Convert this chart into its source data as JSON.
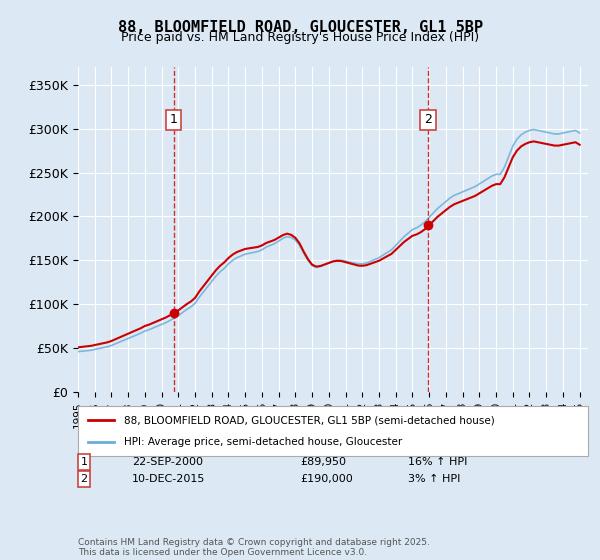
{
  "title": "88, BLOOMFIELD ROAD, GLOUCESTER, GL1 5BP",
  "subtitle": "Price paid vs. HM Land Registry's House Price Index (HPI)",
  "background_color": "#dce9f5",
  "plot_bg_color": "#dce9f5",
  "ylabel_ticks": [
    "£0",
    "£50K",
    "£100K",
    "£150K",
    "£200K",
    "£250K",
    "£300K",
    "£350K"
  ],
  "ytick_values": [
    0,
    50000,
    100000,
    150000,
    200000,
    250000,
    300000,
    350000
  ],
  "ylim": [
    0,
    370000
  ],
  "xlim_start": 1995,
  "xlim_end": 2025.5,
  "marker1_year": 2000.72,
  "marker1_label": "1",
  "marker1_value": 89950,
  "marker2_year": 2015.94,
  "marker2_label": "2",
  "marker2_value": 190000,
  "legend_line1": "88, BLOOMFIELD ROAD, GLOUCESTER, GL1 5BP (semi-detached house)",
  "legend_line2": "HPI: Average price, semi-detached house, Gloucester",
  "annotation1_date": "22-SEP-2000",
  "annotation1_price": "£89,950",
  "annotation1_hpi": "16% ↑ HPI",
  "annotation2_date": "10-DEC-2015",
  "annotation2_price": "£190,000",
  "annotation2_hpi": "3% ↑ HPI",
  "footer": "Contains HM Land Registry data © Crown copyright and database right 2025.\nThis data is licensed under the Open Government Licence v3.0.",
  "red_color": "#cc0000",
  "blue_color": "#6baed6",
  "hpi_years": [
    1995,
    1995.25,
    1995.5,
    1995.75,
    1996,
    1996.25,
    1996.5,
    1996.75,
    1997,
    1997.25,
    1997.5,
    1997.75,
    1998,
    1998.25,
    1998.5,
    1998.75,
    1999,
    1999.25,
    1999.5,
    1999.75,
    2000,
    2000.25,
    2000.5,
    2000.75,
    2001,
    2001.25,
    2001.5,
    2001.75,
    2002,
    2002.25,
    2002.5,
    2002.75,
    2003,
    2003.25,
    2003.5,
    2003.75,
    2004,
    2004.25,
    2004.5,
    2004.75,
    2005,
    2005.25,
    2005.5,
    2005.75,
    2006,
    2006.25,
    2006.5,
    2006.75,
    2007,
    2007.25,
    2007.5,
    2007.75,
    2008,
    2008.25,
    2008.5,
    2008.75,
    2009,
    2009.25,
    2009.5,
    2009.75,
    2010,
    2010.25,
    2010.5,
    2010.75,
    2011,
    2011.25,
    2011.5,
    2011.75,
    2012,
    2012.25,
    2012.5,
    2012.75,
    2013,
    2013.25,
    2013.5,
    2013.75,
    2014,
    2014.25,
    2014.5,
    2014.75,
    2015,
    2015.25,
    2015.5,
    2015.75,
    2016,
    2016.25,
    2016.5,
    2016.75,
    2017,
    2017.25,
    2017.5,
    2017.75,
    2018,
    2018.25,
    2018.5,
    2018.75,
    2019,
    2019.25,
    2019.5,
    2019.75,
    2020,
    2020.25,
    2020.5,
    2020.75,
    2021,
    2021.25,
    2021.5,
    2021.75,
    2022,
    2022.25,
    2022.5,
    2022.75,
    2023,
    2023.25,
    2023.5,
    2023.75,
    2024,
    2024.25,
    2024.5,
    2024.75,
    2025
  ],
  "hpi_values": [
    46000,
    46500,
    47000,
    47500,
    48500,
    49500,
    50500,
    51500,
    53000,
    55000,
    57000,
    59000,
    61000,
    63000,
    65000,
    67000,
    69500,
    71000,
    73000,
    75000,
    77000,
    79000,
    81500,
    84000,
    87000,
    90500,
    94000,
    97000,
    101000,
    108000,
    114000,
    120000,
    126000,
    132000,
    137000,
    141000,
    146000,
    150000,
    153000,
    155000,
    157000,
    158000,
    159000,
    160000,
    162000,
    165000,
    167000,
    169000,
    172000,
    175000,
    177000,
    176000,
    173000,
    167000,
    158000,
    150000,
    144000,
    142000,
    143000,
    145000,
    147000,
    149000,
    150000,
    150000,
    149000,
    148000,
    147000,
    146000,
    146000,
    147000,
    149000,
    151000,
    153000,
    156000,
    159000,
    162000,
    167000,
    172000,
    177000,
    181000,
    185000,
    187000,
    190000,
    194000,
    199000,
    204000,
    209000,
    213000,
    217000,
    221000,
    224000,
    226000,
    228000,
    230000,
    232000,
    234000,
    237000,
    240000,
    243000,
    246000,
    248000,
    248000,
    256000,
    268000,
    280000,
    288000,
    293000,
    296000,
    298000,
    299000,
    298000,
    297000,
    296000,
    295000,
    294000,
    294000,
    295000,
    296000,
    297000,
    298000,
    295000
  ],
  "price_years": [
    1995.5,
    2000.72,
    2015.94,
    2020.5,
    2022.5,
    2024.0,
    2024.5
  ],
  "price_values": [
    52000,
    89950,
    190000,
    248000,
    290000,
    295000,
    290000
  ]
}
